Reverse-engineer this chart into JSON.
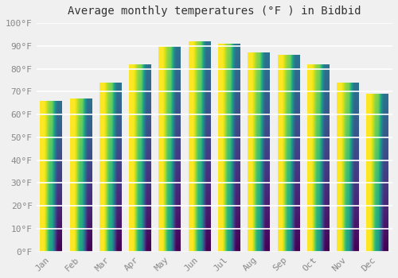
{
  "title": "Average monthly temperatures (°F ) in Bidbid",
  "months": [
    "Jan",
    "Feb",
    "Mar",
    "Apr",
    "May",
    "Jun",
    "Jul",
    "Aug",
    "Sep",
    "Oct",
    "Nov",
    "Dec"
  ],
  "values": [
    66,
    67,
    74,
    82,
    90,
    92,
    91,
    87,
    86,
    82,
    74,
    69
  ],
  "bar_color_main": "#FFA500",
  "bar_color_bright": "#FFD700",
  "ylim": [
    0,
    100
  ],
  "yticks": [
    0,
    10,
    20,
    30,
    40,
    50,
    60,
    70,
    80,
    90,
    100
  ],
  "ytick_labels": [
    "0°F",
    "10°F",
    "20°F",
    "30°F",
    "40°F",
    "50°F",
    "60°F",
    "70°F",
    "80°F",
    "90°F",
    "100°F"
  ],
  "background_color": "#f0f0f0",
  "grid_color": "#ffffff",
  "title_fontsize": 10,
  "tick_fontsize": 8,
  "bar_width": 0.75
}
